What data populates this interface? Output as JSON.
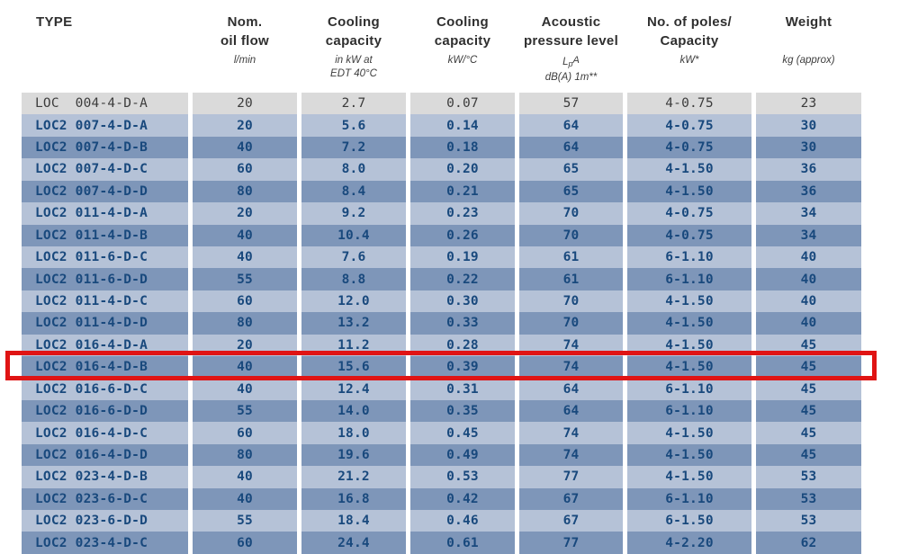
{
  "colors": {
    "row_light_blue": "#b5c2d7",
    "row_dark_blue": "#7e96b9",
    "row_gray": "#dadada",
    "text_navy": "#19497d",
    "text_gray": "#3c3c3c",
    "highlight_red": "#e01414"
  },
  "header": {
    "c1": {
      "title": "TYPE"
    },
    "c2": {
      "l1": "Nom.",
      "l2": "oil flow",
      "sub": "l/min"
    },
    "c3": {
      "l1": "Cooling",
      "l2": "capacity",
      "sub1": "in kW at",
      "sub2": "EDT 40°C"
    },
    "c4": {
      "l1": "Cooling",
      "l2": "capacity",
      "sub": "kW/°C"
    },
    "c5": {
      "l1": "Acoustic",
      "l2": "pressure level",
      "lpa_l": "L",
      "lpa_p": "p",
      "lpa_a": "A",
      "sub2": "dB(A) 1m**"
    },
    "c6": {
      "l1": "No. of poles/",
      "l2": "Capacity",
      "sub": "kW*"
    },
    "c7": {
      "title": "Weight",
      "sub": "kg (approx)"
    }
  },
  "table": {
    "rows": [
      {
        "type": "LOC  004-4-D-A",
        "flow": "20",
        "cap_kw": "2.7",
        "cap_kwc": "0.07",
        "acoustic": "57",
        "poles": "4-0.75",
        "weight": "23",
        "shade": "gray",
        "highlighted": false
      },
      {
        "type": "LOC2 007-4-D-A",
        "flow": "20",
        "cap_kw": "5.6",
        "cap_kwc": "0.14",
        "acoustic": "64",
        "poles": "4-0.75",
        "weight": "30",
        "shade": "light",
        "highlighted": false
      },
      {
        "type": "LOC2 007-4-D-B",
        "flow": "40",
        "cap_kw": "7.2",
        "cap_kwc": "0.18",
        "acoustic": "64",
        "poles": "4-0.75",
        "weight": "30",
        "shade": "dark",
        "highlighted": false
      },
      {
        "type": "LOC2 007-4-D-C",
        "flow": "60",
        "cap_kw": "8.0",
        "cap_kwc": "0.20",
        "acoustic": "65",
        "poles": "4-1.50",
        "weight": "36",
        "shade": "light",
        "highlighted": false
      },
      {
        "type": "LOC2 007-4-D-D",
        "flow": "80",
        "cap_kw": "8.4",
        "cap_kwc": "0.21",
        "acoustic": "65",
        "poles": "4-1.50",
        "weight": "36",
        "shade": "dark",
        "highlighted": false
      },
      {
        "type": "LOC2 011-4-D-A",
        "flow": "20",
        "cap_kw": "9.2",
        "cap_kwc": "0.23",
        "acoustic": "70",
        "poles": "4-0.75",
        "weight": "34",
        "shade": "light",
        "highlighted": false
      },
      {
        "type": "LOC2 011-4-D-B",
        "flow": "40",
        "cap_kw": "10.4",
        "cap_kwc": "0.26",
        "acoustic": "70",
        "poles": "4-0.75",
        "weight": "34",
        "shade": "dark",
        "highlighted": false
      },
      {
        "type": "LOC2 011-6-D-C",
        "flow": "40",
        "cap_kw": "7.6",
        "cap_kwc": "0.19",
        "acoustic": "61",
        "poles": "6-1.10",
        "weight": "40",
        "shade": "light",
        "highlighted": false
      },
      {
        "type": "LOC2 011-6-D-D",
        "flow": "55",
        "cap_kw": "8.8",
        "cap_kwc": "0.22",
        "acoustic": "61",
        "poles": "6-1.10",
        "weight": "40",
        "shade": "dark",
        "highlighted": false
      },
      {
        "type": "LOC2 011-4-D-C",
        "flow": "60",
        "cap_kw": "12.0",
        "cap_kwc": "0.30",
        "acoustic": "70",
        "poles": "4-1.50",
        "weight": "40",
        "shade": "light",
        "highlighted": false
      },
      {
        "type": "LOC2 011-4-D-D",
        "flow": "80",
        "cap_kw": "13.2",
        "cap_kwc": "0.33",
        "acoustic": "70",
        "poles": "4-1.50",
        "weight": "40",
        "shade": "dark",
        "highlighted": false
      },
      {
        "type": "LOC2 016-4-D-A",
        "flow": "20",
        "cap_kw": "11.2",
        "cap_kwc": "0.28",
        "acoustic": "74",
        "poles": "4-1.50",
        "weight": "45",
        "shade": "light",
        "highlighted": false
      },
      {
        "type": "LOC2 016-4-D-B",
        "flow": "40",
        "cap_kw": "15.6",
        "cap_kwc": "0.39",
        "acoustic": "74",
        "poles": "4-1.50",
        "weight": "45",
        "shade": "dark",
        "highlighted": true
      },
      {
        "type": "LOC2 016-6-D-C",
        "flow": "40",
        "cap_kw": "12.4",
        "cap_kwc": "0.31",
        "acoustic": "64",
        "poles": "6-1.10",
        "weight": "45",
        "shade": "light",
        "highlighted": false
      },
      {
        "type": "LOC2 016-6-D-D",
        "flow": "55",
        "cap_kw": "14.0",
        "cap_kwc": "0.35",
        "acoustic": "64",
        "poles": "6-1.10",
        "weight": "45",
        "shade": "dark",
        "highlighted": false
      },
      {
        "type": "LOC2 016-4-D-C",
        "flow": "60",
        "cap_kw": "18.0",
        "cap_kwc": "0.45",
        "acoustic": "74",
        "poles": "4-1.50",
        "weight": "45",
        "shade": "light",
        "highlighted": false
      },
      {
        "type": "LOC2 016-4-D-D",
        "flow": "80",
        "cap_kw": "19.6",
        "cap_kwc": "0.49",
        "acoustic": "74",
        "poles": "4-1.50",
        "weight": "45",
        "shade": "dark",
        "highlighted": false
      },
      {
        "type": "LOC2 023-4-D-B",
        "flow": "40",
        "cap_kw": "21.2",
        "cap_kwc": "0.53",
        "acoustic": "77",
        "poles": "4-1.50",
        "weight": "53",
        "shade": "light",
        "highlighted": false
      },
      {
        "type": "LOC2 023-6-D-C",
        "flow": "40",
        "cap_kw": "16.8",
        "cap_kwc": "0.42",
        "acoustic": "67",
        "poles": "6-1.10",
        "weight": "53",
        "shade": "dark",
        "highlighted": false
      },
      {
        "type": "LOC2 023-6-D-D",
        "flow": "55",
        "cap_kw": "18.4",
        "cap_kwc": "0.46",
        "acoustic": "67",
        "poles": "6-1.50",
        "weight": "53",
        "shade": "light",
        "highlighted": false
      },
      {
        "type": "LOC2 023-4-D-C",
        "flow": "60",
        "cap_kw": "24.4",
        "cap_kwc": "0.61",
        "acoustic": "77",
        "poles": "4-2.20",
        "weight": "62",
        "shade": "dark",
        "highlighted": false
      }
    ]
  }
}
